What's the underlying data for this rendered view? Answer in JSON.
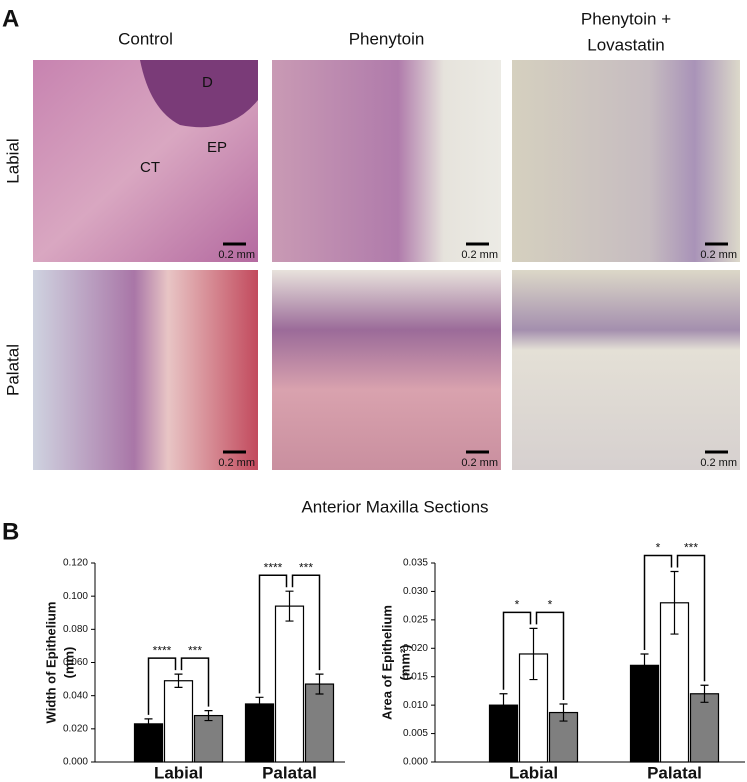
{
  "panel_a": {
    "label": "A",
    "columns": [
      [
        "Control"
      ],
      [
        "Phenytoin"
      ],
      [
        "Phenytoin +",
        "Lovastatin"
      ]
    ],
    "rows": [
      "Labial",
      "Palatal"
    ],
    "scale_bar": "0.2 mm",
    "annotations": [
      "D",
      "CT",
      "EP"
    ]
  },
  "panel_b": {
    "label": "B",
    "title": "Anterior Maxilla Sections"
  },
  "chart_data": [
    {
      "type": "bar",
      "y_label": [
        "Width of Epithelium",
        "(mm)"
      ],
      "categories": [
        "Labial",
        "Palatal"
      ],
      "series": [
        {
          "color": "#000000",
          "values": [
            0.023,
            0.035
          ],
          "errors": [
            0.003,
            0.004
          ]
        },
        {
          "color": "#ffffff",
          "values": [
            0.049,
            0.094
          ],
          "errors": [
            0.004,
            0.009
          ]
        },
        {
          "color": "#7f7f7f",
          "values": [
            0.028,
            0.047
          ],
          "errors": [
            0.003,
            0.006
          ]
        }
      ],
      "significance": [
        [
          "****",
          "***"
        ],
        [
          "****",
          "***"
        ]
      ],
      "ylim": [
        0,
        0.12
      ],
      "yticks": [
        {
          "value": 0,
          "label": "0.000"
        },
        {
          "value": 0.02,
          "label": "0.020"
        },
        {
          "value": 0.04,
          "label": "0.040"
        },
        {
          "value": 0.06,
          "label": "0.060"
        },
        {
          "value": 0.08,
          "label": "0.080"
        },
        {
          "value": 0.1,
          "label": "0.100"
        },
        {
          "value": 0.12,
          "label": "0.120"
        }
      ]
    },
    {
      "type": "bar",
      "y_label": [
        "Area of Epithelium",
        "(mm²)"
      ],
      "categories": [
        "Labial",
        "Palatal"
      ],
      "series": [
        {
          "color": "#000000",
          "values": [
            0.01,
            0.017
          ],
          "errors": [
            0.002,
            0.002
          ]
        },
        {
          "color": "#ffffff",
          "values": [
            0.019,
            0.028
          ],
          "errors": [
            0.0045,
            0.0055
          ]
        },
        {
          "color": "#7f7f7f",
          "values": [
            0.0087,
            0.012
          ],
          "errors": [
            0.0015,
            0.0015
          ]
        }
      ],
      "significance": [
        [
          "*",
          "*"
        ],
        [
          "*",
          "***"
        ]
      ],
      "ylim": [
        0,
        0.035
      ],
      "yticks": [
        {
          "value": 0,
          "label": "0.000"
        },
        {
          "value": 0.005,
          "label": "0.005"
        },
        {
          "value": 0.01,
          "label": "0.010"
        },
        {
          "value": 0.015,
          "label": "0.015"
        },
        {
          "value": 0.02,
          "label": "0.020"
        },
        {
          "value": 0.025,
          "label": "0.025"
        },
        {
          "value": 0.03,
          "label": "0.030"
        },
        {
          "value": 0.035,
          "label": "0.035"
        }
      ]
    }
  ]
}
